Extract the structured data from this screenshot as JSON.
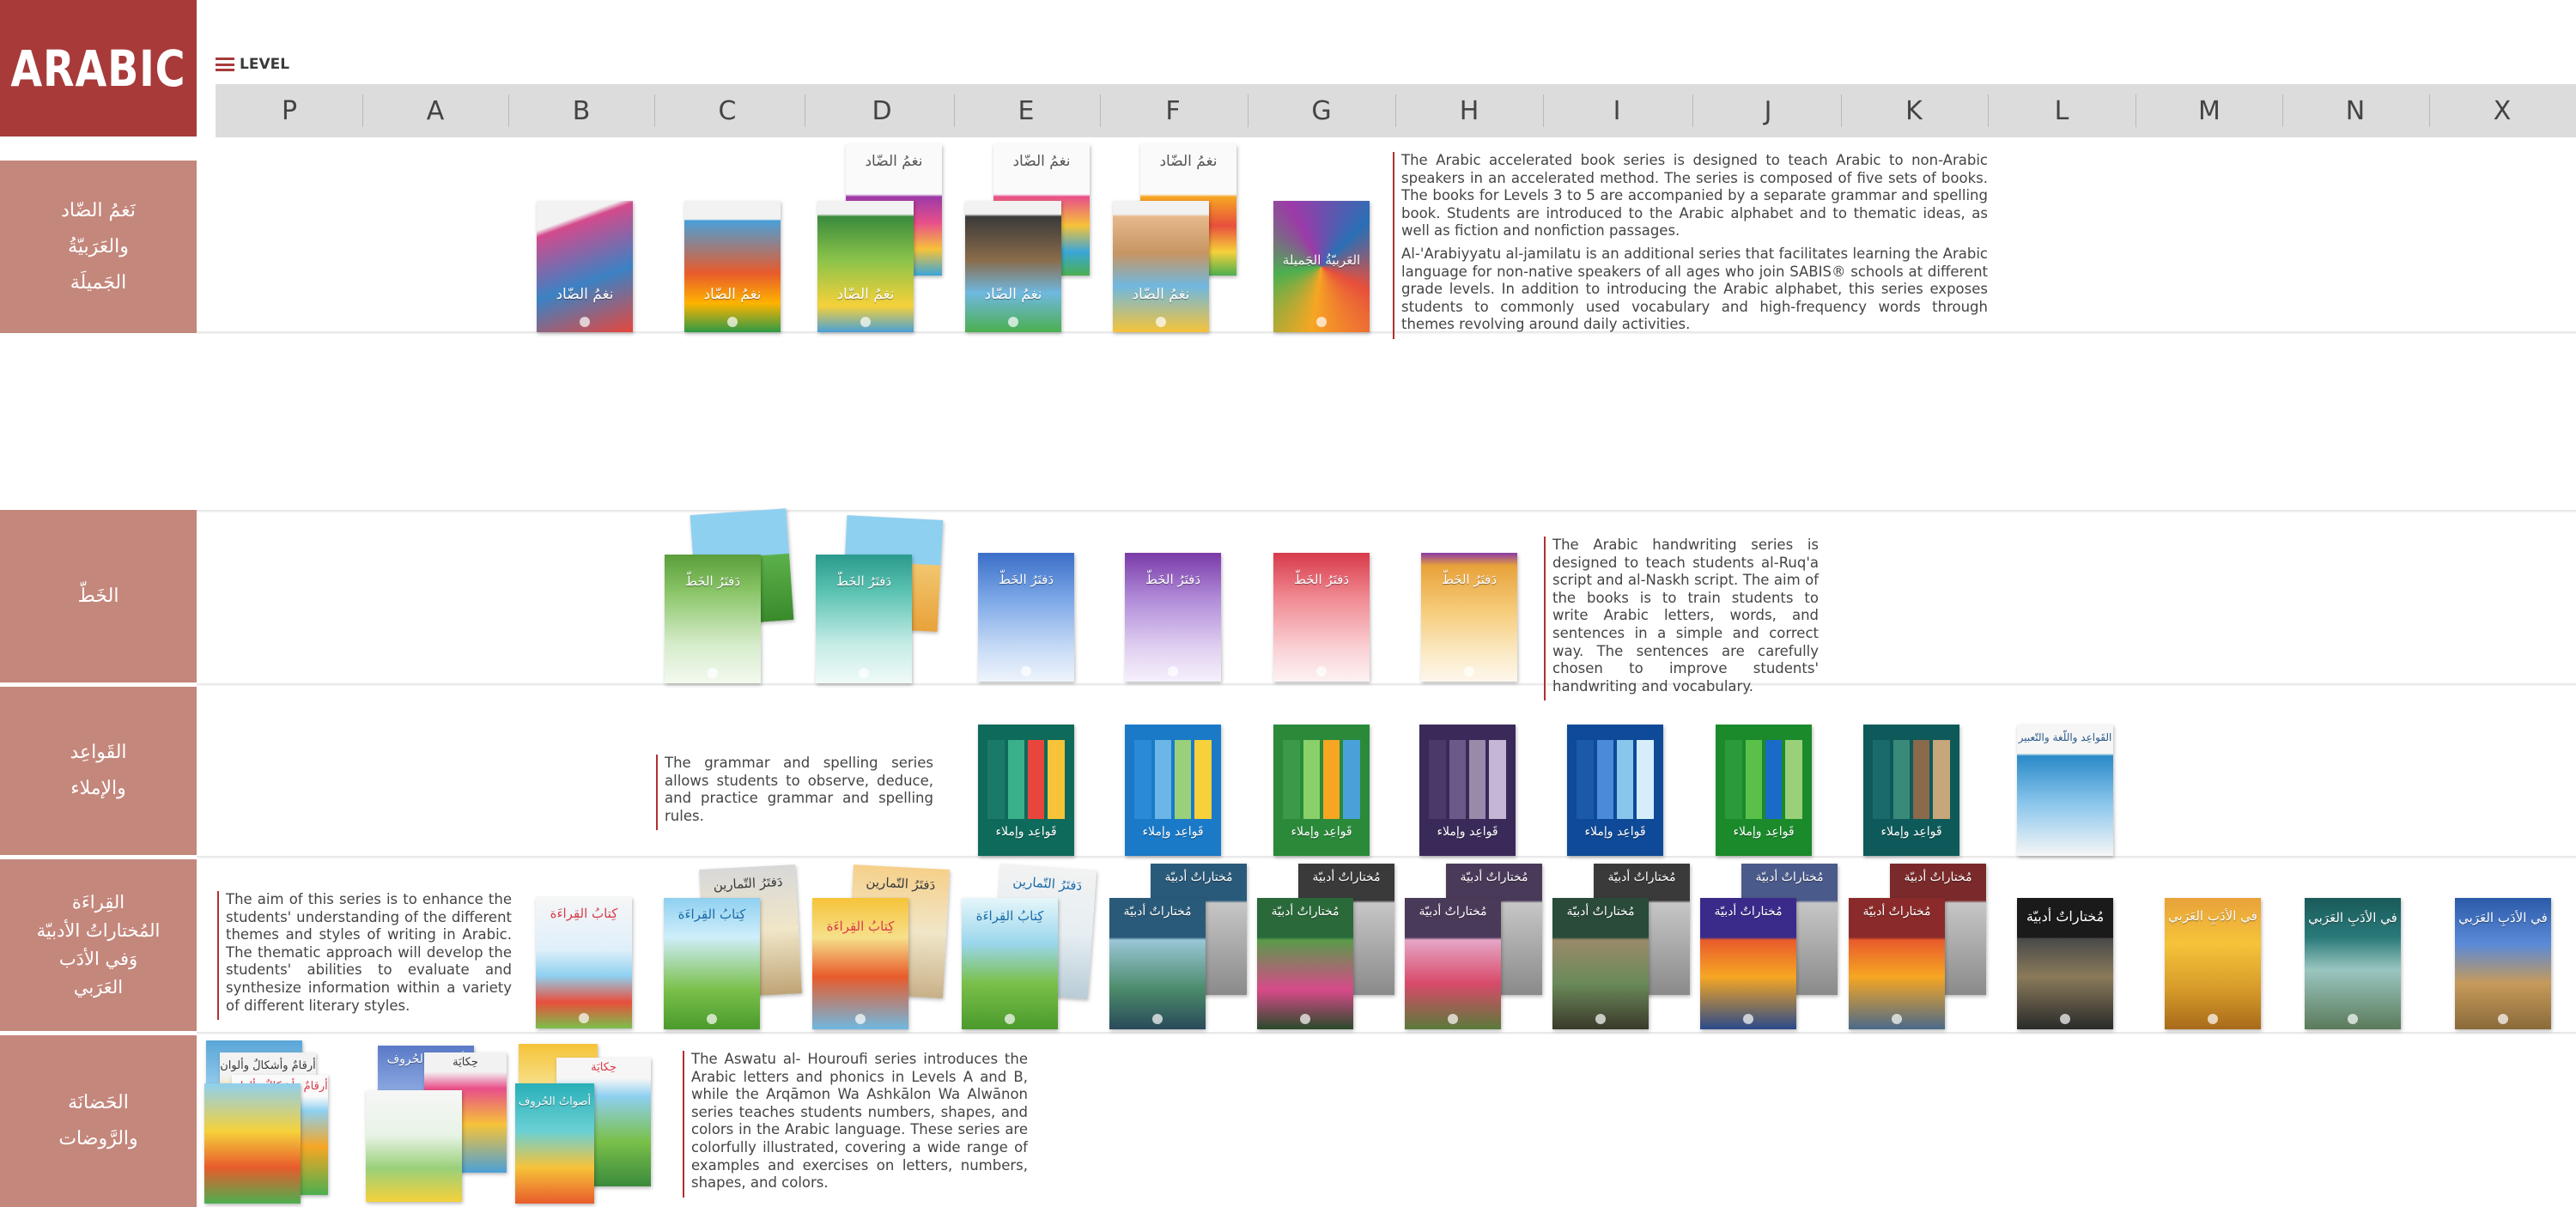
{
  "header": {
    "title": "ARABIC",
    "legend_label": "LEVEL",
    "levels": [
      "P",
      "A",
      "B",
      "C",
      "D",
      "E",
      "F",
      "G",
      "H",
      "I",
      "J",
      "K",
      "L",
      "M",
      "N",
      "X"
    ]
  },
  "rows": [
    {
      "label": "نَغمُ الضّاد\nوالعَرَبيّةُ\nالجَميلَة"
    },
    {
      "label": "الخَطّ"
    },
    {
      "label": "القَواعِد\nوالإملاء"
    },
    {
      "label": "القِراءَة\nالمُختاراتُ الأدبيّة\nوَفي الأدَب\nالعَرَبي"
    },
    {
      "label": "الحَضانَة\nوالرَّوضات"
    }
  ],
  "descriptions": {
    "accelerated_p1": "The Arabic accelerated book series is designed to teach Arabic to non-Arabic speakers in an accelerated method. The series is composed of five sets of books. The books for Levels 3 to 5 are accompanied by a separate grammar and spelling book. Students are introduced to the Arabic alphabet and to thematic ideas, as well as fiction and nonfiction passages.",
    "accelerated_p2": "Al-'Arabiyyatu al-jamilatu is an additional series that facilitates learning the Arabic language for non-native speakers of all ages who join SABIS® schools at different grade levels. In addition to introducing the Arabic alphabet, this series exposes students to commonly used vocabulary and high-frequency words through themes revolving around daily activities.",
    "handwriting": "The Arabic handwriting series is designed to teach students al-Ruq'a script and al-Naskh script. The aim of the books is to train students to write Arabic letters, words, and sentences in a simple and correct way. The sentences are carefully chosen to improve students' handwriting and vocabulary.",
    "grammar": "The grammar and spelling series allows students to observe, deduce, and practice grammar and spelling rules.",
    "reading": "The aim of this series is to enhance the students' understanding of the different themes and styles of writing in Arabic. The thematic approach will develop the students' abilities to evaluate and synthesize information within a variety of different literary styles.",
    "nursery": "The Aswatu al- Houroufi series introduces the Arabic letters and phonics in Levels A and B, while the Arqāmon Wa Ashkālon Wa Alwānon series teaches students numbers, shapes, and colors in the Arabic language. These series are colorfully illustrated, covering a wide range of examples and exercises on letters, numbers, shapes, and colors."
  },
  "book_titles": {
    "naghm": "نغمُ الضّاد",
    "jamila": "العَربيّةُ الجَميلة",
    "khatt": "دَفتَرُ الخَطّ",
    "qawaid": "قَواعِد وإملاء",
    "qawaid_l": "القَواعِد واللّغة والتّعبير",
    "qiraa": "كِتابُ القِراءَة",
    "tamarin": "دَفتَرُ التّمارين",
    "mukhtarat": "مُختاراتٌ أدبيّة",
    "adab": "في الأدَبِ العَرَبي",
    "aswat": "أصواتُ الحُروف",
    "hikaya": "حِكايَة",
    "arqam": "أرقامٌ وأشكالٌ وألوان"
  },
  "colors": {
    "title_bg": "#a83a3a",
    "row_label_bg": "#c4877c",
    "level_bar_bg": "#dcdcdc",
    "accent_line": "#b03030"
  }
}
